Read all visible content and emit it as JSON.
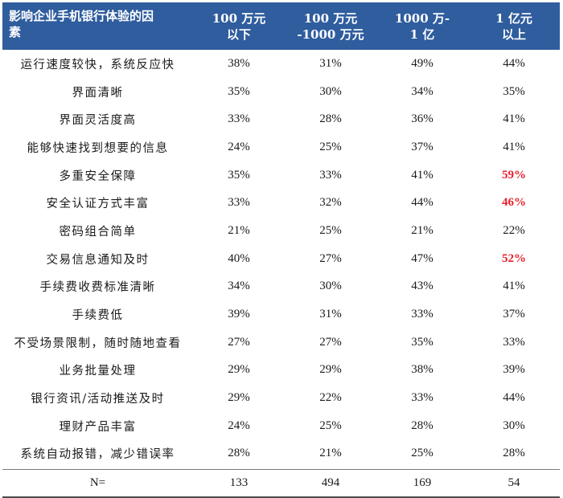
{
  "header": {
    "factor_line1": "影响企业手机银行体验的因",
    "factor_line2": "素",
    "columns": [
      {
        "line1": "100 万元",
        "line2": "以下"
      },
      {
        "line1": "100 万元",
        "line2": "-1000 万元"
      },
      {
        "line1": "1000 万-",
        "line2": "1 亿"
      },
      {
        "line1": "1 亿元",
        "line2": "以上"
      }
    ]
  },
  "rows": [
    {
      "factor": "运行速度较快，系统反应快",
      "values": [
        "38%",
        "31%",
        "49%",
        "44%"
      ]
    },
    {
      "factor": "界面清晰",
      "values": [
        "35%",
        "30%",
        "34%",
        "35%"
      ]
    },
    {
      "factor": "界面灵活度高",
      "values": [
        "33%",
        "28%",
        "36%",
        "41%"
      ]
    },
    {
      "factor": "能够快速找到想要的信息",
      "values": [
        "24%",
        "25%",
        "37%",
        "41%"
      ]
    },
    {
      "factor": "多重安全保障",
      "values": [
        "35%",
        "33%",
        "41%",
        "59%"
      ]
    },
    {
      "factor": "安全认证方式丰富",
      "values": [
        "33%",
        "32%",
        "44%",
        "46%"
      ]
    },
    {
      "factor": "密码组合简单",
      "values": [
        "21%",
        "25%",
        "21%",
        "22%"
      ]
    },
    {
      "factor": "交易信息通知及时",
      "values": [
        "40%",
        "27%",
        "47%",
        "52%"
      ]
    },
    {
      "factor": "手续费收费标准清晰",
      "values": [
        "34%",
        "30%",
        "43%",
        "41%"
      ]
    },
    {
      "factor": "手续费低",
      "values": [
        "39%",
        "31%",
        "33%",
        "37%"
      ]
    },
    {
      "factor": "不受场景限制，随时随地查看",
      "values": [
        "27%",
        "27%",
        "35%",
        "33%"
      ]
    },
    {
      "factor": "业务批量处理",
      "values": [
        "29%",
        "29%",
        "38%",
        "39%"
      ]
    },
    {
      "factor": "银行资讯/活动推送及时",
      "values": [
        "29%",
        "22%",
        "33%",
        "44%"
      ]
    },
    {
      "factor": "理财产品丰富",
      "values": [
        "24%",
        "25%",
        "28%",
        "30%"
      ]
    },
    {
      "factor": "系统自动报错，减少错误率",
      "values": [
        "28%",
        "21%",
        "25%",
        "28%"
      ]
    }
  ],
  "highlighted": [
    {
      "row": 4,
      "col": 3
    },
    {
      "row": 5,
      "col": 3
    },
    {
      "row": 7,
      "col": 3
    }
  ],
  "footer": {
    "label": "N=",
    "values": [
      "133",
      "494",
      "169",
      "54"
    ]
  },
  "colors": {
    "header_bg": "#2f5d9e",
    "highlight": "#e8212b"
  }
}
